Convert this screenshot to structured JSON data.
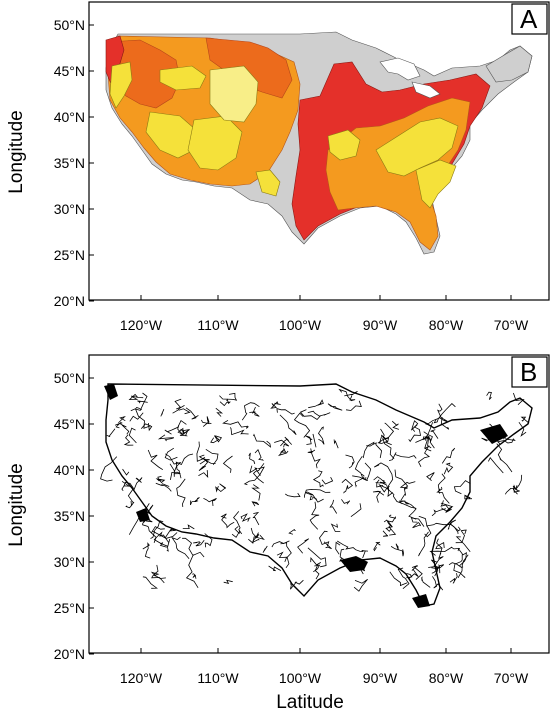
{
  "colors": {
    "no_data": "#cfcfcf",
    "yellow": "#f5e13a",
    "light_yellow": "#f8ee88",
    "orange": "#f49a1f",
    "dark_orange": "#ec6b1c",
    "red": "#e4302a",
    "frame": "#000000",
    "water_lines": "#000000"
  },
  "panels": [
    {
      "label": "A",
      "content": "colored-regions-map",
      "y_ticks": [
        "50°N",
        "45°N",
        "40°N",
        "35°N",
        "30°N",
        "25°N",
        "20°N"
      ],
      "x_ticks": [
        "120°W",
        "110°W",
        "100°W",
        "90°W",
        "80°W",
        "70°W"
      ],
      "y_title": "Longitude"
    },
    {
      "label": "B",
      "content": "hydrography-line-map",
      "y_ticks": [
        "50°N",
        "45°N",
        "40°N",
        "35°N",
        "30°N",
        "25°N",
        "20°N"
      ],
      "x_ticks": [
        "120°W",
        "110°W",
        "100°W",
        "90°W",
        "80°W",
        "70°W"
      ],
      "y_title": "Longitude",
      "x_title": "Latitude"
    }
  ],
  "axis_ranges": {
    "lon_min": -127,
    "lon_max": -65,
    "lat_min": 19.5,
    "lat_max": 51
  }
}
